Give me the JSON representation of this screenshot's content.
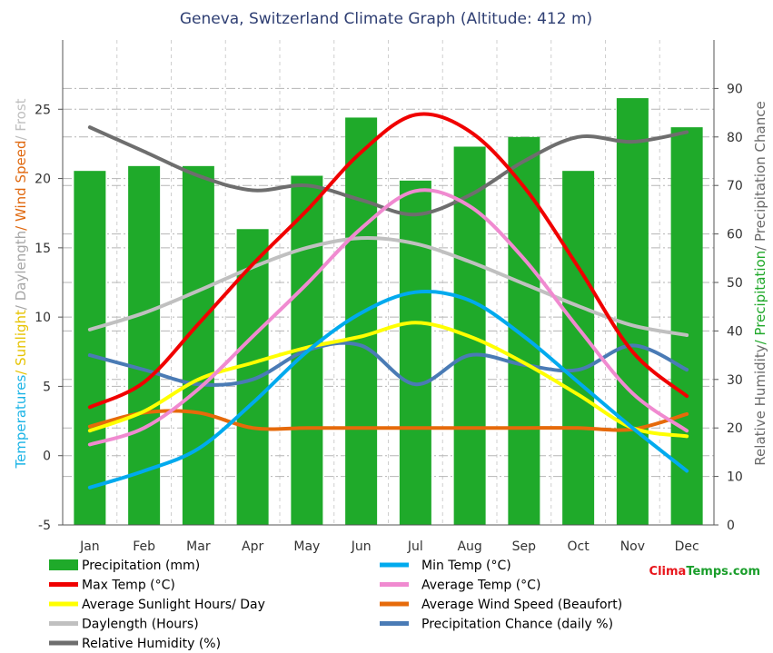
{
  "title": "Geneva, Switzerland Climate Graph (Altitude: 412 m)",
  "brand": {
    "part1": "Clima",
    "part2": "Temps",
    "part3": ".com",
    "color1": "#e8151b",
    "color2": "#1a9e2b"
  },
  "left_axis_parts": [
    {
      "text": "Temperatures",
      "color": "#1bb4e6"
    },
    {
      "text": "/ Sunlight",
      "color": "#e6c300"
    },
    {
      "text": "/ Daylength",
      "color": "#a6a6a6"
    },
    {
      "text": "/ Wind Speed",
      "color": "#e0680e"
    },
    {
      "text": "/ Frost",
      "color": "#bfbfbf"
    }
  ],
  "right_axis_parts": [
    {
      "text": "Relative Humidity",
      "color": "#6b6b6b"
    },
    {
      "text": "/ Precipitation",
      "color": "#20a82a"
    },
    {
      "text": "/ Precipitation Chance",
      "color": "#6b6b6b"
    }
  ],
  "legend": [
    {
      "label": "Precipitation (mm)",
      "color": "#1faa2a",
      "kind": "bar"
    },
    {
      "label": "Min Temp (°C)",
      "color": "#00aaee",
      "kind": "line"
    },
    {
      "label": "Max Temp (°C)",
      "color": "#f00000",
      "kind": "line"
    },
    {
      "label": "Average Temp (°C)",
      "color": "#f08ad0",
      "kind": "line"
    },
    {
      "label": "Average Sunlight Hours/ Day",
      "color": "#ffff00",
      "kind": "line"
    },
    {
      "label": "Average Wind Speed (Beaufort)",
      "color": "#e66a0a",
      "kind": "line"
    },
    {
      "label": "Daylength (Hours)",
      "color": "#c0c0c0",
      "kind": "line"
    },
    {
      "label": "Precipitation Chance (daily %)",
      "color": "#4a7bb5",
      "kind": "line"
    },
    {
      "label": "Relative Humidity (%)",
      "color": "#6e6e6e",
      "kind": "line"
    }
  ],
  "chart_data": {
    "type": "bar",
    "title": "Geneva, Switzerland Climate Graph (Altitude: 412 m)",
    "categories": [
      "Jan",
      "Feb",
      "Mar",
      "Apr",
      "May",
      "Jun",
      "Jul",
      "Aug",
      "Sep",
      "Oct",
      "Nov",
      "Dec"
    ],
    "y_left": {
      "range": [
        -5,
        30
      ],
      "ticks": [
        -5,
        0,
        5,
        10,
        15,
        20,
        25
      ]
    },
    "y_right": {
      "range": [
        0,
        100
      ],
      "ticks": [
        0,
        10,
        20,
        30,
        40,
        50,
        60,
        70,
        80,
        90
      ]
    },
    "grid": true,
    "legend_position": "bottom",
    "bars": {
      "name": "Precipitation (mm)",
      "axis": "right",
      "color": "#1faa2a",
      "values": [
        73,
        74,
        74,
        61,
        72,
        84,
        71,
        78,
        80,
        73,
        88,
        82
      ]
    },
    "series": [
      {
        "name": "Min Temp (°C)",
        "axis": "left",
        "color": "#00aaee",
        "values": [
          -2.3,
          -1.1,
          0.5,
          3.8,
          7.5,
          10.3,
          11.8,
          11.2,
          8.6,
          5.3,
          2.0,
          -1.1
        ]
      },
      {
        "name": "Max Temp (°C)",
        "axis": "left",
        "color": "#f00000",
        "values": [
          3.5,
          5.3,
          9.5,
          13.8,
          17.7,
          21.9,
          24.6,
          23.4,
          19.4,
          13.6,
          7.5,
          4.3
        ]
      },
      {
        "name": "Average Temp (°C)",
        "axis": "left",
        "color": "#f08ad0",
        "values": [
          0.8,
          2.0,
          4.8,
          8.6,
          12.4,
          16.4,
          19.1,
          18.0,
          14.2,
          9.2,
          4.5,
          1.8
        ]
      },
      {
        "name": "Average Sunlight Hours/ Day",
        "axis": "left",
        "color": "#ffff00",
        "values": [
          1.8,
          3.2,
          5.5,
          6.7,
          7.8,
          8.6,
          9.6,
          8.6,
          6.7,
          4.4,
          2.0,
          1.4
        ]
      },
      {
        "name": "Average Wind Speed (Beaufort)",
        "axis": "left",
        "color": "#e66a0a",
        "values": [
          2.1,
          3.1,
          3.1,
          2.0,
          2.0,
          2.0,
          2.0,
          2.0,
          2.0,
          2.0,
          1.9,
          3.0
        ]
      },
      {
        "name": "Daylength (Hours)",
        "axis": "left",
        "color": "#c0c0c0",
        "values": [
          9.1,
          10.3,
          11.9,
          13.6,
          15.0,
          15.7,
          15.3,
          14.0,
          12.4,
          10.8,
          9.4,
          8.7
        ]
      },
      {
        "name": "Precipitation Chance (daily %)",
        "axis": "right",
        "color": "#4a7bb5",
        "values": [
          35,
          32,
          29,
          30,
          36,
          37,
          29,
          35,
          33,
          32,
          37,
          32
        ]
      },
      {
        "name": "Relative Humidity (%)",
        "axis": "right",
        "color": "#6e6e6e",
        "values": [
          82,
          77,
          72,
          69,
          70,
          67,
          64,
          68,
          75,
          80,
          79,
          81
        ]
      }
    ]
  }
}
